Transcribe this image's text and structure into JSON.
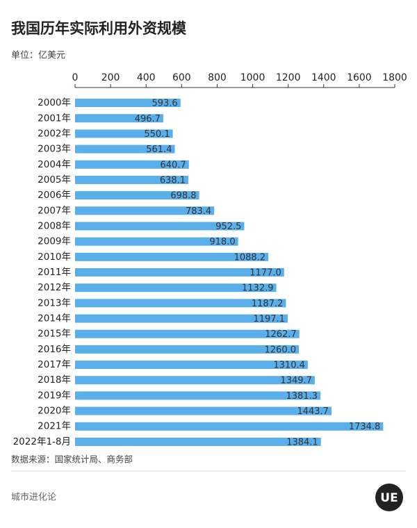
{
  "chart_data": {
    "type": "bar",
    "orientation": "horizontal",
    "title": "我国历年实际利用外资规模",
    "subtitle": "单位：亿美元",
    "source": "数据来源：国家统计局、商务部",
    "footer": "城市进化论",
    "logo": "UE",
    "categories": [
      "2000年",
      "2001年",
      "2002年",
      "2003年",
      "2004年",
      "2005年",
      "2006年",
      "2007年",
      "2008年",
      "2009年",
      "2010年",
      "2011年",
      "2012年",
      "2013年",
      "2014年",
      "2015年",
      "2016年",
      "2017年",
      "2018年",
      "2019年",
      "2020年",
      "2021年",
      "2022年1-8月"
    ],
    "values": [
      593.6,
      496.7,
      550.1,
      561.4,
      640.7,
      638.1,
      698.8,
      783.4,
      952.5,
      918.0,
      1088.2,
      1177.0,
      1132.9,
      1187.2,
      1197.1,
      1262.7,
      1260.0,
      1310.4,
      1349.7,
      1381.3,
      1443.7,
      1734.8,
      1384.1
    ],
    "value_labels": [
      "593.6",
      "496.7",
      "550.1",
      "561.4",
      "640.7",
      "638.1",
      "698.8",
      "783.4",
      "952.5",
      "918.0",
      "1088.2",
      "1177.0",
      "1132.9",
      "1187.2",
      "1197.1",
      "1262.7",
      "1260.0",
      "1310.4",
      "1349.7",
      "1381.3",
      "1443.7",
      "1734.8",
      "1384.1"
    ],
    "color": "#5aaeea",
    "xlim": [
      0,
      1800
    ],
    "xticks": [
      0,
      200,
      400,
      600,
      800,
      1000,
      1200,
      1400,
      1600,
      1800
    ]
  }
}
